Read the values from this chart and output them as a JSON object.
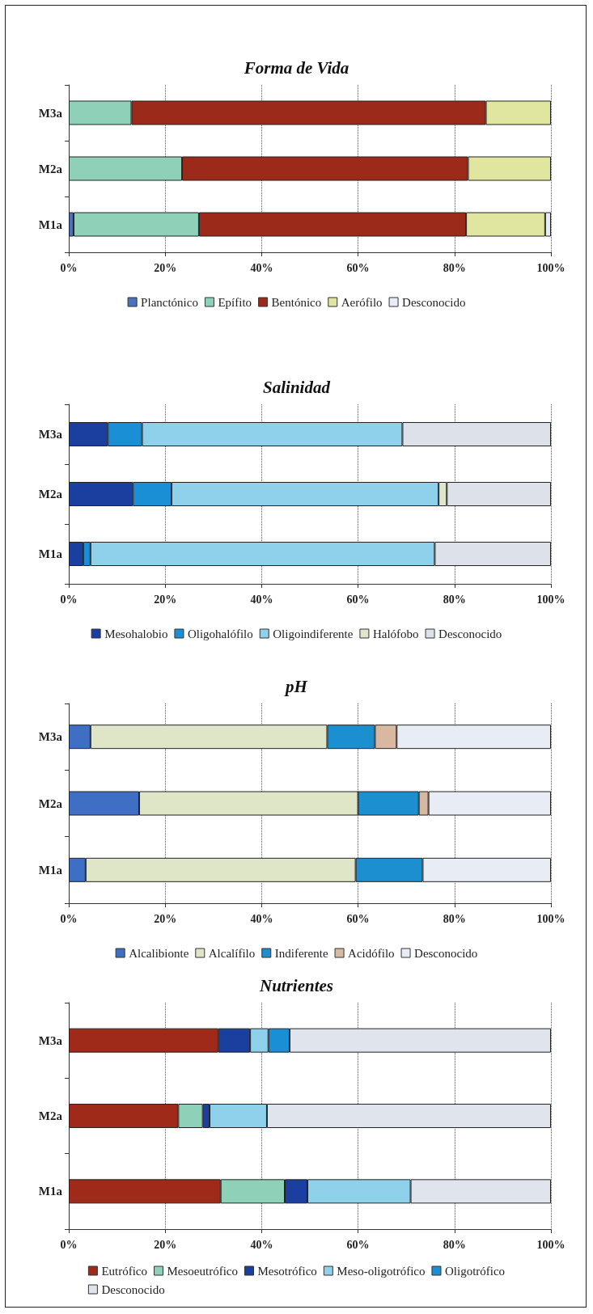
{
  "chart_data": [
    {
      "type": "bar",
      "title": "Forma de Vida",
      "orientation": "horizontal",
      "stacked": true,
      "categories": [
        "M3a",
        "M2a",
        "M1a"
      ],
      "xlim": [
        0,
        100
      ],
      "xticks": [
        {
          "value": 0,
          "label": "0%"
        },
        {
          "value": 20,
          "label": "20%"
        },
        {
          "value": 40,
          "label": "40%"
        },
        {
          "value": 60,
          "label": "60%"
        },
        {
          "value": 80,
          "label": "80%"
        },
        {
          "value": 100,
          "label": "100%"
        }
      ],
      "grid": "x",
      "legend": "bottom",
      "series": [
        {
          "name": "Planctónico",
          "color": "#4a72c0",
          "values": [
            0,
            0,
            1
          ]
        },
        {
          "name": "Epífito",
          "color": "#8fd0b8",
          "values": [
            13,
            23.5,
            26
          ]
        },
        {
          "name": "Bentónico",
          "color": "#9c2a1a",
          "values": [
            73.5,
            59.3,
            55.4
          ]
        },
        {
          "name": "Aerófilo",
          "color": "#e0e6a0",
          "values": [
            13.5,
            17.2,
            16.4
          ]
        },
        {
          "name": "Desconocido",
          "color": "#e8ecf4",
          "values": [
            0,
            0,
            1.2
          ]
        }
      ]
    },
    {
      "type": "bar",
      "title": "Salinidad",
      "orientation": "horizontal",
      "stacked": true,
      "categories": [
        "M3a",
        "M2a",
        "M1a"
      ],
      "xlim": [
        0,
        100
      ],
      "xticks": [
        {
          "value": 0,
          "label": "0%"
        },
        {
          "value": 20,
          "label": "20%"
        },
        {
          "value": 40,
          "label": "40%"
        },
        {
          "value": 60,
          "label": "60%"
        },
        {
          "value": 80,
          "label": "80%"
        },
        {
          "value": 100,
          "label": "100%"
        }
      ],
      "grid": "x",
      "legend": "bottom",
      "series": [
        {
          "name": "Mesohalobio",
          "color": "#1a3f9e",
          "values": [
            8.1,
            13.3,
            3
          ]
        },
        {
          "name": "Oligohalófilo",
          "color": "#1a8fd6",
          "values": [
            7.1,
            8,
            1.5
          ]
        },
        {
          "name": "Oligoindiferente",
          "color": "#8fd0ea",
          "values": [
            54,
            55.4,
            71.4
          ]
        },
        {
          "name": "Halófobo",
          "color": "#dfe6cc",
          "values": [
            0,
            1.7,
            0
          ]
        },
        {
          "name": "Desconocido",
          "color": "#dde2ea",
          "values": [
            30.8,
            21.6,
            24.1
          ]
        }
      ]
    },
    {
      "type": "bar",
      "title": "pH",
      "orientation": "horizontal",
      "stacked": true,
      "categories": [
        "M3a",
        "M2a",
        "M1a"
      ],
      "xlim": [
        0,
        100
      ],
      "xticks": [
        {
          "value": 0,
          "label": "0%"
        },
        {
          "value": 20,
          "label": "20%"
        },
        {
          "value": 40,
          "label": "40%"
        },
        {
          "value": 60,
          "label": "60%"
        },
        {
          "value": 80,
          "label": "80%"
        },
        {
          "value": 100,
          "label": "100%"
        }
      ],
      "grid": "x",
      "legend": "bottom",
      "series": [
        {
          "name": "Alcalibionte",
          "color": "#3f6fc4",
          "values": [
            4.5,
            14.6,
            3.5
          ]
        },
        {
          "name": "Alcalífilo",
          "color": "#dfe6c8",
          "values": [
            49.1,
            45.4,
            56
          ]
        },
        {
          "name": "Indiferente",
          "color": "#1b8fd0",
          "values": [
            9.9,
            12.6,
            13.9
          ]
        },
        {
          "name": "Acidófilo",
          "color": "#d8b8a0",
          "values": [
            4.5,
            2,
            0
          ]
        },
        {
          "name": "Desconocido",
          "color": "#e8ecf4",
          "values": [
            32,
            25.4,
            26.6
          ]
        }
      ]
    },
    {
      "type": "bar",
      "title": "Nutrientes",
      "orientation": "horizontal",
      "stacked": true,
      "categories": [
        "M3a",
        "M2a",
        "M1a"
      ],
      "xlim": [
        0,
        100
      ],
      "xticks": [
        {
          "value": 0,
          "label": "0%"
        },
        {
          "value": 20,
          "label": "20%"
        },
        {
          "value": 40,
          "label": "40%"
        },
        {
          "value": 60,
          "label": "60%"
        },
        {
          "value": 80,
          "label": "80%"
        },
        {
          "value": 100,
          "label": "100%"
        }
      ],
      "grid": "x",
      "legend": "bottom",
      "series": [
        {
          "name": "Eutrófico",
          "color": "#a02a1a",
          "values": [
            31,
            22.7,
            31.5
          ]
        },
        {
          "name": "Mesoeutrófico",
          "color": "#8fd0b8",
          "values": [
            0,
            5.1,
            13.3
          ]
        },
        {
          "name": "Mesotrófico",
          "color": "#1a3f9e",
          "values": [
            6.6,
            1.4,
            4.7
          ]
        },
        {
          "name": "Meso-oligotrófico",
          "color": "#8fd0ea",
          "values": [
            3.8,
            11.9,
            21.4
          ]
        },
        {
          "name": "Oligotrófico",
          "color": "#1a8fd6",
          "values": [
            4.4,
            0,
            0
          ]
        },
        {
          "name": "Desconocido",
          "color": "#e0e4ec",
          "values": [
            54.2,
            58.9,
            29.1
          ]
        }
      ]
    }
  ]
}
